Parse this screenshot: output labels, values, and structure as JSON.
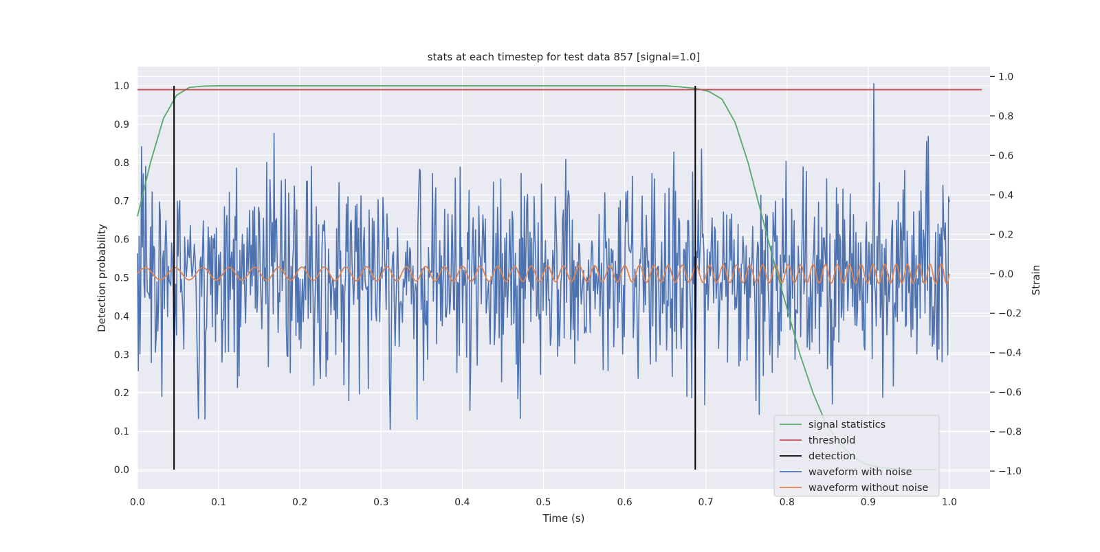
{
  "chart_data": {
    "type": "line",
    "title": "stats at each timestep for test data 857 [signal=1.0]",
    "xlabel": "Time (s)",
    "ylabel_left": "Detection probability",
    "ylabel_right": "Strain",
    "xlim": [
      0.0,
      1.05
    ],
    "ylim_left": [
      -0.05,
      1.05
    ],
    "ylim_right": [
      -1.09,
      1.05
    ],
    "xticks": [
      "0.0",
      "0.1",
      "0.2",
      "0.3",
      "0.4",
      "0.5",
      "0.6",
      "0.7",
      "0.8",
      "0.9",
      "1.0"
    ],
    "yticks_left": [
      "0.0",
      "0.1",
      "0.2",
      "0.3",
      "0.4",
      "0.5",
      "0.6",
      "0.7",
      "0.8",
      "0.9",
      "1.0"
    ],
    "yticks_right": [
      "−1.0",
      "−0.8",
      "−0.6",
      "−0.4",
      "−0.2",
      "0.0",
      "0.2",
      "0.4",
      "0.6",
      "0.8",
      "1.0"
    ],
    "grid": true,
    "legend_position": "lower-right",
    "colors": {
      "signal_statistics": "#55a868",
      "threshold": "#c44e52",
      "detection": "#000000",
      "waveform_with_noise": "#4c72b0",
      "waveform_without_noise": "#dd8452",
      "background": "#eaeaf2"
    },
    "series": [
      {
        "name": "signal statistics",
        "axis": "left",
        "x": [
          0.0,
          0.016,
          0.032,
          0.048,
          0.064,
          0.08,
          0.1,
          0.2,
          0.3,
          0.4,
          0.5,
          0.6,
          0.65,
          0.67,
          0.688,
          0.704,
          0.72,
          0.736,
          0.752,
          0.768,
          0.784,
          0.8,
          0.816,
          0.832,
          0.848,
          0.864,
          0.88,
          0.896,
          0.912,
          0.928,
          0.944,
          0.96,
          0.976,
          0.984
        ],
        "y": [
          0.66,
          0.8,
          0.915,
          0.975,
          0.996,
          0.999,
          1.0,
          1.0,
          1.0,
          1.0,
          1.0,
          1.0,
          1.0,
          0.997,
          0.993,
          0.985,
          0.965,
          0.905,
          0.8,
          0.67,
          0.54,
          0.42,
          0.3,
          0.2,
          0.12,
          0.07,
          0.035,
          0.015,
          0.007,
          0.003,
          0.001,
          0.0,
          0.0,
          0.0
        ]
      },
      {
        "name": "threshold",
        "axis": "left",
        "x": [
          0.0,
          1.04
        ],
        "y": [
          0.99,
          0.99
        ]
      },
      {
        "name": "detection",
        "axis": "left",
        "x": [
          0.045,
          0.687
        ],
        "y_range": [
          0.0,
          1.0
        ]
      },
      {
        "name": "waveform with noise",
        "axis": "right",
        "x_range": [
          0.0,
          1.0
        ],
        "sample_count": 1000,
        "amplitude_std": 0.25,
        "y_range_shown": [
          -1.0,
          1.0
        ]
      },
      {
        "name": "waveform without noise",
        "axis": "right",
        "x_range": [
          0.0,
          1.0
        ],
        "amplitude_start": 0.03,
        "amplitude_end": 0.05,
        "cycles_start": 26,
        "cycles_end": 74
      }
    ]
  }
}
